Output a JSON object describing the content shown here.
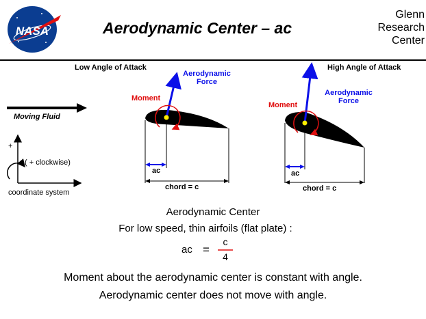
{
  "header": {
    "title": "Aerodynamic  Center – ac",
    "org_lines": [
      "Glenn",
      "Research",
      "Center"
    ],
    "logo_text": "NASA"
  },
  "left_panel": {
    "moving_fluid": "Moving Fluid",
    "axis_plus": "+",
    "clockwise": "( + clockwise)",
    "coord_system": "coordinate system"
  },
  "low_panel": {
    "heading": "Low  Angle of Attack",
    "force_line1": "Aerodynamic",
    "force_line2": "Force",
    "moment": "Moment",
    "ac": "ac",
    "chord": "chord = c"
  },
  "high_panel": {
    "heading": "High  Angle of Attack",
    "force_line1": "Aerodynamic",
    "force_line2": "Force",
    "moment": "Moment",
    "ac": "ac",
    "chord": "chord = c"
  },
  "explanation": {
    "heading": "Aerodynamic   Center",
    "line1": "For  low  speed,  thin  airfoils (flat plate) :",
    "formula_lhs": "ac",
    "formula_eq": "=",
    "formula_num": "c",
    "formula_den": "4",
    "line2": "Moment  about  the  aerodynamic  center  is  constant  with angle.",
    "line3": "Aerodynamic  center  does  not  move  with  angle."
  },
  "colors": {
    "red": "#e01010",
    "blue": "#0b10e8",
    "nasa_blue": "#0b3d91",
    "yellow": "#ffee00"
  }
}
